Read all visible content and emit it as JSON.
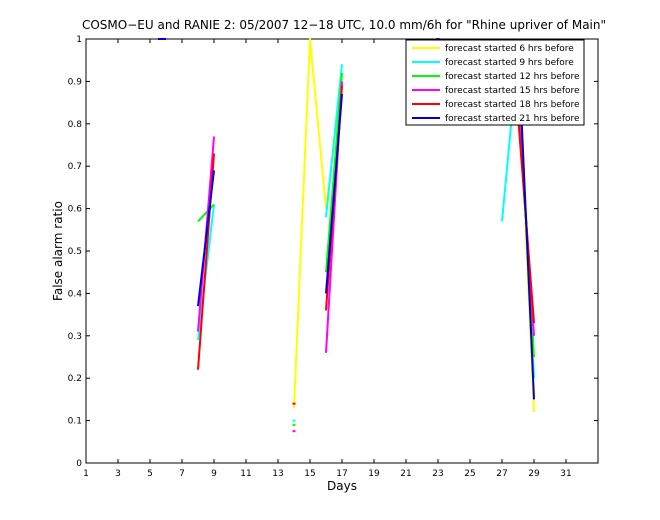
{
  "chart_data": {
    "type": "line",
    "title": "COSMO−EU and RANIE 2: 05/2007 12−18 UTC, 10.0 mm/6h for \"Rhine upriver of Main\"",
    "xlabel": "Days",
    "ylabel": "False alarm ratio",
    "xlim": [
      1,
      33
    ],
    "ylim": [
      0,
      1
    ],
    "xticks": [
      1,
      3,
      5,
      7,
      9,
      11,
      13,
      15,
      17,
      19,
      21,
      23,
      25,
      27,
      29,
      31
    ],
    "xtick_labels": [
      "1",
      "3",
      "5",
      "7",
      "9",
      "11",
      "13",
      "15",
      "17",
      "19",
      "21",
      "23",
      "25",
      "27",
      "29",
      "31"
    ],
    "yticks": [
      0,
      0.1,
      0.2,
      0.3,
      0.4,
      0.5,
      0.6,
      0.7,
      0.8,
      0.9,
      1
    ],
    "ytick_labels": [
      "0",
      "0.1",
      "0.2",
      "0.3",
      "0.4",
      "0.5",
      "0.6",
      "0.7",
      "0.8",
      "0.9",
      "1"
    ],
    "legend_position": "top-right",
    "series": [
      {
        "name": "forecast started 6 hrs before",
        "color": "#ffff00",
        "segments": [
          [
            [
              14,
              0.13
            ],
            [
              15,
              1.0
            ],
            [
              16,
              0.6
            ],
            [
              17,
              0.9
            ]
          ],
          [
            [
              28,
              0.95
            ],
            [
              29,
              0.12
            ]
          ]
        ]
      },
      {
        "name": "forecast started 9 hrs before",
        "color": "#00ffff",
        "segments": [
          [
            [
              8,
              0.29
            ],
            [
              9,
              0.61
            ]
          ],
          [
            [
              14,
              0.1
            ]
          ],
          [
            [
              16,
              0.58
            ],
            [
              17,
              0.94
            ]
          ],
          [
            [
              27,
              0.57
            ],
            [
              28,
              0.97
            ],
            [
              29,
              0.2
            ]
          ]
        ]
      },
      {
        "name": "forecast started 12 hrs before",
        "color": "#00ff00",
        "segments": [
          [
            [
              5.5,
              1.0
            ],
            [
              6,
              1.0
            ]
          ],
          [
            [
              8,
              0.57
            ],
            [
              9,
              0.61
            ]
          ],
          [
            [
              14,
              0.09
            ]
          ],
          [
            [
              16,
              0.45
            ],
            [
              17,
              0.92
            ]
          ],
          [
            [
              23,
              0.96
            ]
          ],
          [
            [
              28,
              0.9
            ],
            [
              29,
              0.25
            ]
          ]
        ]
      },
      {
        "name": "forecast started 15 hrs before",
        "color": "#ff00ff",
        "segments": [
          [
            [
              8,
              0.31
            ],
            [
              9,
              0.77
            ]
          ],
          [
            [
              14,
              0.075
            ]
          ],
          [
            [
              16,
              0.26
            ],
            [
              17,
              0.9
            ]
          ],
          [
            [
              28,
              0.85
            ],
            [
              29,
              0.3
            ]
          ]
        ]
      },
      {
        "name": "forecast started 18 hrs before",
        "color": "#ff0000",
        "segments": [
          [
            [
              8,
              0.22
            ],
            [
              9,
              0.73
            ]
          ],
          [
            [
              14,
              0.14
            ]
          ],
          [
            [
              16,
              0.36
            ],
            [
              17,
              0.89
            ]
          ],
          [
            [
              28,
              0.82
            ],
            [
              29,
              0.33
            ]
          ]
        ]
      },
      {
        "name": "forecast started 21 hrs before",
        "color": "#0000cc",
        "segments": [
          [
            [
              5.5,
              1.0
            ],
            [
              6,
              1.0
            ]
          ],
          [
            [
              8,
              0.37
            ],
            [
              9,
              0.69
            ]
          ],
          [
            [
              16,
              0.4
            ],
            [
              17,
              0.87
            ]
          ],
          [
            [
              23,
              1.0
            ]
          ],
          [
            [
              28,
              1.0
            ],
            [
              29,
              0.15
            ]
          ]
        ]
      }
    ]
  }
}
